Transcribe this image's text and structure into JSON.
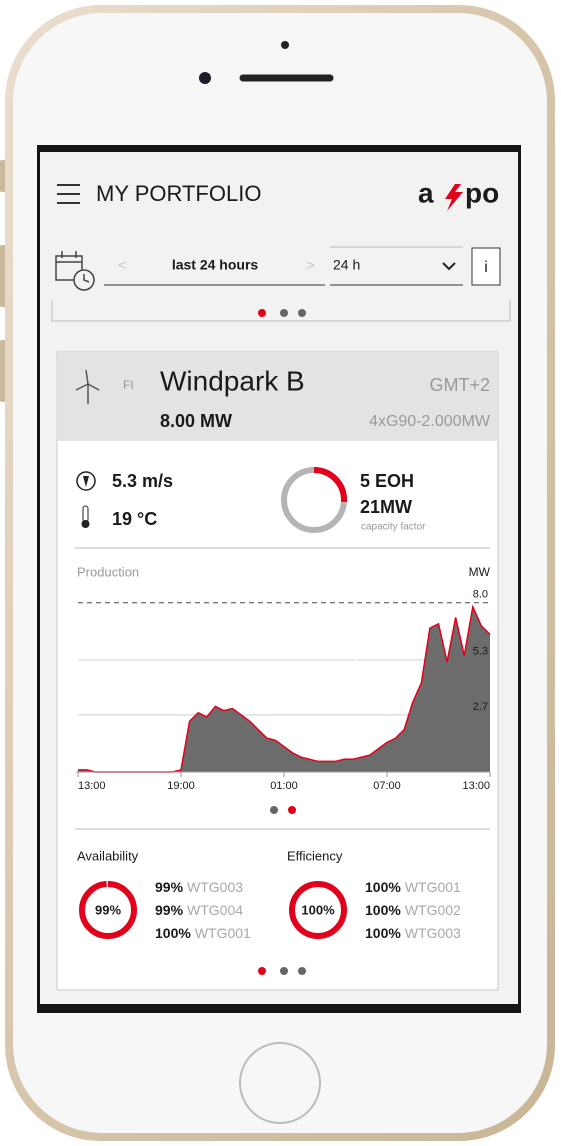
{
  "header": {
    "title": "MY PORTFOLIO",
    "logo": {
      "left": "a",
      "right": "po"
    }
  },
  "period": {
    "prev": "<",
    "label": "last 24 hours",
    "next": ">",
    "range": "24 h",
    "info": "i"
  },
  "park": {
    "country": "FI",
    "name": "Windpark B",
    "timezone": "GMT+2",
    "power": "8.00 MW",
    "turbines": "4xG90-2.000MW"
  },
  "conditions": {
    "wind": "5.3 m/s",
    "temperature": "19 °C"
  },
  "capacity": {
    "eoh": "5 EOH",
    "power": "21MW",
    "caption": "capacity factor",
    "gauge_percent": 26
  },
  "chart_data": {
    "type": "area",
    "title": "Production",
    "unit": "MW",
    "color": "#e2001a",
    "fill": "#6c6c6c",
    "x": [
      0,
      0.5,
      1,
      1.5,
      2,
      2.5,
      3,
      3.5,
      4,
      4.5,
      5,
      5.5,
      6,
      6.5,
      7,
      7.5,
      8,
      8.5,
      9,
      9.5,
      10,
      10.5,
      11,
      11.5,
      12,
      12.5,
      13,
      13.5,
      14,
      14.5,
      15,
      15.5,
      16,
      16.5,
      17,
      17.5,
      18,
      18.5,
      19,
      19.5,
      20,
      20.5,
      21,
      21.5,
      22,
      22.5,
      23,
      23.5,
      24
    ],
    "values": [
      0.1,
      0.1,
      0,
      0,
      0,
      0,
      0,
      0,
      0,
      0,
      0,
      0,
      0.1,
      2.4,
      2.8,
      2.6,
      3.1,
      2.9,
      3.0,
      2.7,
      2.4,
      2.0,
      1.6,
      1.5,
      1.2,
      0.9,
      0.7,
      0.6,
      0.5,
      0.5,
      0.5,
      0.6,
      0.6,
      0.7,
      0.8,
      1.1,
      1.4,
      1.6,
      2.0,
      3.3,
      4.2,
      6.8,
      7.0,
      5.2,
      7.3,
      5.5,
      7.8,
      6.9,
      6.5
    ],
    "xlim": [
      0,
      24
    ],
    "xticks": [
      {
        "value": 0,
        "label": "13:00"
      },
      {
        "value": 6,
        "label": "19:00"
      },
      {
        "value": 12,
        "label": "01:00"
      },
      {
        "value": 18,
        "label": "07:00"
      },
      {
        "value": 24,
        "label": "13:00"
      }
    ],
    "ylim": [
      0,
      8.6
    ],
    "yticks": [
      2.7,
      5.3,
      {
        "value": 8,
        "label": "8.0"
      }
    ]
  },
  "availability": {
    "title": "Availability",
    "total": {
      "value": 99,
      "label": "99%"
    },
    "rows": [
      {
        "value": "99%",
        "turbine": "WTG003"
      },
      {
        "value": "99%",
        "turbine": "WTG004"
      },
      {
        "value": "100%",
        "turbine": "WTG001"
      }
    ]
  },
  "efficiency": {
    "title": "Efficiency",
    "total": {
      "value": 100,
      "label": "100%"
    },
    "rows": [
      {
        "value": "100%",
        "turbine": "WTG001"
      },
      {
        "value": "100%",
        "turbine": "WTG002"
      },
      {
        "value": "100%",
        "turbine": "WTG003"
      }
    ]
  }
}
